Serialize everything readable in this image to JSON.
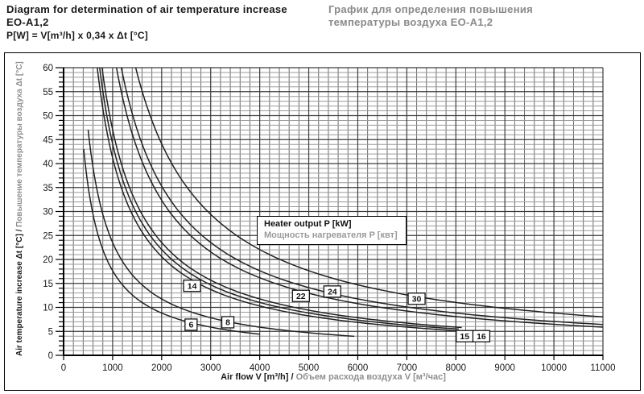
{
  "header": {
    "title_en": "Diagram for determination of air temperature increase EO-A1,2",
    "formula": "P[W] = V[m³/h] x 0,34 x Δt [°C]",
    "title_ru": "График для определения повышения температуры воздуха EO-A1,2"
  },
  "colors": {
    "title_ru_gray": "#8a8a8a",
    "curve": "#222222",
    "grid_minor_h": "#9a9a9a",
    "grid_minor_v": "#6b6b6b",
    "grid_major": "#3c3c3c",
    "axis": "#000000",
    "background": "#ffffff"
  },
  "chart_data": {
    "type": "line",
    "title": "",
    "xlabel_en": "Air flow V [m³/h]",
    "xlabel_sep": " / ",
    "xlabel_ru": "Объем расхода воздуха V [м³/час]",
    "ylabel_en": "Air temperature increase Δt [°C]",
    "ylabel_sep": " / ",
    "ylabel_ru": "Повышение температуры воздуха Δt [°C]",
    "legend_en": "Heater output  P [kW]",
    "legend_ru": "Мощность нагревателя  P [квт]",
    "xlim": [
      0,
      11000
    ],
    "ylim": [
      0,
      60
    ],
    "x_major_ticks": [
      0,
      1000,
      2000,
      3000,
      4000,
      5000,
      6000,
      7000,
      8000,
      9000,
      10000,
      11000
    ],
    "y_major_ticks": [
      0,
      5,
      10,
      15,
      20,
      25,
      30,
      35,
      40,
      45,
      50,
      55,
      60
    ],
    "x_minor_step": 200,
    "y_minor_step": 1,
    "grid": "on",
    "legend_position": "center",
    "relation": "Δt [°C] = P[W] / (0.34 × V[m³/h]) ; each curve is a heater output P in kW",
    "series": [
      {
        "name": "6 kW",
        "P_kW": 6,
        "v_range": [
          410,
          4000
        ],
        "label": "6",
        "label_pos": {
          "v": 2600,
          "dt": 6.4
        },
        "points": [
          {
            "v": 500,
            "dt": 35.3
          },
          {
            "v": 1000,
            "dt": 17.6
          },
          {
            "v": 2000,
            "dt": 8.8
          },
          {
            "v": 3000,
            "dt": 5.9
          },
          {
            "v": 4000,
            "dt": 4.4
          }
        ]
      },
      {
        "name": "8 kW",
        "P_kW": 8,
        "v_range": [
          500,
          5930
        ],
        "label": "8",
        "label_pos": {
          "v": 3350,
          "dt": 6.9
        },
        "points": [
          {
            "v": 1000,
            "dt": 23.5
          },
          {
            "v": 2000,
            "dt": 11.8
          },
          {
            "v": 3000,
            "dt": 7.8
          },
          {
            "v": 4000,
            "dt": 5.9
          },
          {
            "v": 5000,
            "dt": 4.7
          }
        ]
      },
      {
        "name": "14 kW",
        "P_kW": 14,
        "v_range": [
          686,
          8000
        ],
        "label": "14",
        "label_pos": {
          "v": 2620,
          "dt": 14.5
        },
        "points": [
          {
            "v": 1000,
            "dt": 41.2
          },
          {
            "v": 2000,
            "dt": 20.6
          },
          {
            "v": 3000,
            "dt": 13.7
          },
          {
            "v": 4000,
            "dt": 10.3
          },
          {
            "v": 5000,
            "dt": 8.2
          },
          {
            "v": 6000,
            "dt": 6.9
          },
          {
            "v": 7000,
            "dt": 5.9
          },
          {
            "v": 8000,
            "dt": 5.1
          }
        ]
      },
      {
        "name": "15 kW",
        "P_kW": 15,
        "v_range": [
          735,
          8060
        ],
        "label": "15",
        "label_pos": {
          "v": 8180,
          "dt": 4.0
        },
        "points": [
          {
            "v": 1000,
            "dt": 44.1
          },
          {
            "v": 2000,
            "dt": 22.1
          },
          {
            "v": 3000,
            "dt": 14.7
          },
          {
            "v": 4000,
            "dt": 11.0
          },
          {
            "v": 5000,
            "dt": 8.8
          },
          {
            "v": 6000,
            "dt": 7.4
          },
          {
            "v": 7000,
            "dt": 6.3
          },
          {
            "v": 8000,
            "dt": 5.5
          }
        ]
      },
      {
        "name": "16 kW",
        "P_kW": 16,
        "v_range": [
          784,
          8120
        ],
        "label": "16",
        "label_pos": {
          "v": 8520,
          "dt": 4.0
        },
        "points": [
          {
            "v": 1000,
            "dt": 47.1
          },
          {
            "v": 2000,
            "dt": 23.5
          },
          {
            "v": 3000,
            "dt": 15.7
          },
          {
            "v": 4000,
            "dt": 11.8
          },
          {
            "v": 5000,
            "dt": 9.4
          },
          {
            "v": 6000,
            "dt": 7.8
          },
          {
            "v": 7000,
            "dt": 6.7
          },
          {
            "v": 8000,
            "dt": 5.9
          }
        ]
      },
      {
        "name": "22 kW",
        "P_kW": 22,
        "v_range": [
          1078,
          11000
        ],
        "label": "22",
        "label_pos": {
          "v": 4840,
          "dt": 12.4
        },
        "points": [
          {
            "v": 2000,
            "dt": 32.4
          },
          {
            "v": 3000,
            "dt": 21.6
          },
          {
            "v": 4000,
            "dt": 16.2
          },
          {
            "v": 5000,
            "dt": 12.9
          },
          {
            "v": 6000,
            "dt": 10.8
          },
          {
            "v": 7000,
            "dt": 9.2
          },
          {
            "v": 8000,
            "dt": 8.1
          },
          {
            "v": 9000,
            "dt": 7.2
          },
          {
            "v": 10000,
            "dt": 6.5
          },
          {
            "v": 11000,
            "dt": 5.9
          }
        ]
      },
      {
        "name": "24 kW",
        "P_kW": 24,
        "v_range": [
          1176,
          11000
        ],
        "label": "24",
        "label_pos": {
          "v": 5480,
          "dt": 13.3
        },
        "points": [
          {
            "v": 2000,
            "dt": 35.3
          },
          {
            "v": 3000,
            "dt": 23.5
          },
          {
            "v": 4000,
            "dt": 17.6
          },
          {
            "v": 5000,
            "dt": 14.1
          },
          {
            "v": 6000,
            "dt": 11.8
          },
          {
            "v": 7000,
            "dt": 10.1
          },
          {
            "v": 8000,
            "dt": 8.8
          },
          {
            "v": 9000,
            "dt": 7.8
          },
          {
            "v": 10000,
            "dt": 7.1
          },
          {
            "v": 11000,
            "dt": 6.4
          }
        ]
      },
      {
        "name": "30 kW",
        "P_kW": 30,
        "v_range": [
          1471,
          11000
        ],
        "label": "30",
        "label_pos": {
          "v": 7200,
          "dt": 11.8
        },
        "points": [
          {
            "v": 2000,
            "dt": 44.1
          },
          {
            "v": 3000,
            "dt": 29.4
          },
          {
            "v": 4000,
            "dt": 22.1
          },
          {
            "v": 5000,
            "dt": 17.6
          },
          {
            "v": 6000,
            "dt": 14.7
          },
          {
            "v": 7000,
            "dt": 12.6
          },
          {
            "v": 8000,
            "dt": 11.0
          },
          {
            "v": 9000,
            "dt": 9.8
          },
          {
            "v": 10000,
            "dt": 8.8
          },
          {
            "v": 11000,
            "dt": 8.0
          }
        ]
      }
    ]
  }
}
